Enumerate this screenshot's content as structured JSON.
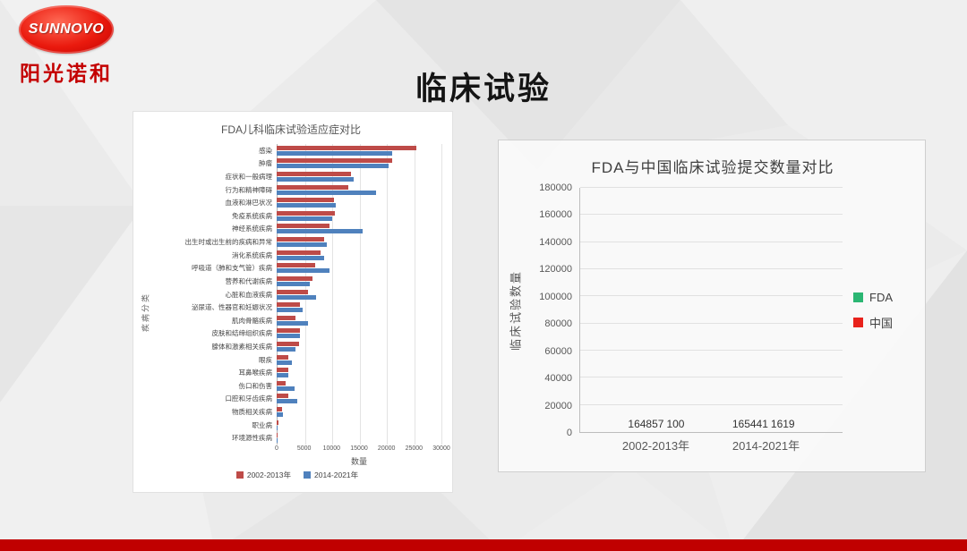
{
  "logo": {
    "brand": "SUNNOVO",
    "brand_cn": "阳光诺和"
  },
  "title": "临床试验",
  "accent_color": "#c00000",
  "chart_data": [
    {
      "type": "bar",
      "orientation": "horizontal",
      "title": "FDA儿科临床试验适应症对比",
      "xlabel": "数量",
      "ylabel": "疾病分类",
      "xlim": [
        0,
        30000
      ],
      "xticks": [
        "0",
        "5000",
        "10000",
        "15000",
        "20000",
        "25000",
        "30000"
      ],
      "grid": true,
      "legend_position": "bottom",
      "categories": [
        "感染",
        "肿瘤",
        "症状和一般病理",
        "行为和精神障碍",
        "血液和淋巴状况",
        "免疫系统疾病",
        "神经系统疾病",
        "出生时或出生前的疾病和异常",
        "消化系统疾病",
        "呼吸道（肺和支气管）疾病",
        "营养和代谢疾病",
        "心脏和血液疾病",
        "泌尿道、性器官和妊娠状况",
        "肌肉骨骼疾病",
        "皮肤和结缔组织疾病",
        "腺体和激素相关疾病",
        "眼疾",
        "耳鼻喉疾病",
        "伤口和伤害",
        "口腔和牙齿疾病",
        "物质相关疾病",
        "职业病",
        "环境源性疾病"
      ],
      "series": [
        {
          "name": "2002-2013年",
          "color": "#be4b48",
          "values": [
            25400,
            21100,
            13600,
            13100,
            10500,
            10600,
            9600,
            8700,
            8000,
            7000,
            6600,
            5700,
            4200,
            3500,
            4200,
            4100,
            2200,
            2200,
            1700,
            2200,
            1000,
            250,
            120
          ]
        },
        {
          "name": "2014-2021年",
          "color": "#4f81bd",
          "values": [
            21000,
            20400,
            14100,
            18100,
            10800,
            10100,
            15700,
            9100,
            8600,
            9600,
            6100,
            7100,
            4700,
            5700,
            4200,
            3500,
            2700,
            2200,
            3200,
            3700,
            1200,
            180,
            80
          ]
        }
      ]
    },
    {
      "type": "bar",
      "orientation": "vertical",
      "title": "FDA与中国临床试验提交数量对比",
      "ylabel": "临床试验数量",
      "xlabel": "",
      "ylim": [
        0,
        180000
      ],
      "yticks": [
        "0",
        "20000",
        "40000",
        "60000",
        "80000",
        "100000",
        "120000",
        "140000",
        "160000",
        "180000"
      ],
      "grid": true,
      "legend_position": "right",
      "categories": [
        "2002-2013年",
        "2014-2021年"
      ],
      "series": [
        {
          "name": "FDA",
          "color": "#2bb673",
          "color_bottom": "#14646b",
          "values": [
            164857,
            165441
          ],
          "labels": [
            "164857",
            "165441"
          ]
        },
        {
          "name": "中国",
          "color": "#e8221c",
          "values": [
            100,
            1619
          ],
          "labels": [
            "100",
            "1619"
          ]
        }
      ]
    }
  ]
}
